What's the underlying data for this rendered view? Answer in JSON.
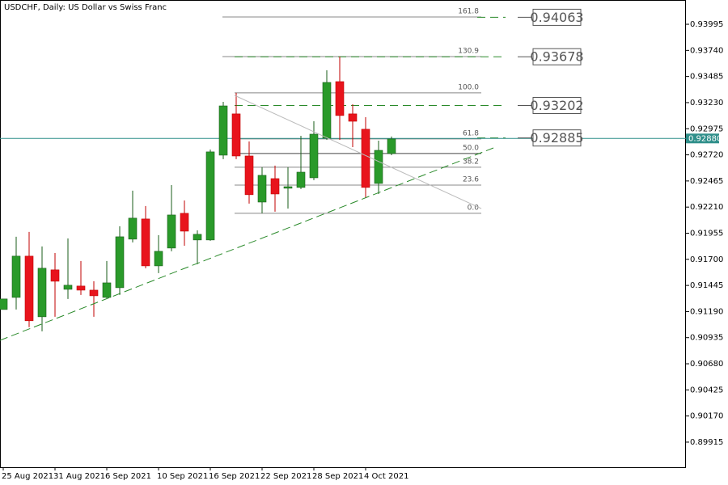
{
  "chart_data": {
    "type": "candlestick",
    "title": "USDCHF, Daily:  US Dollar vs Swiss Franc",
    "categories": [
      "25 Aug 2021",
      null,
      null,
      null,
      "31 Aug 2021",
      null,
      null,
      null,
      "6 Sep 2021",
      null,
      null,
      null,
      "10 Sep 2021",
      null,
      null,
      null,
      "16 Sep 2021",
      null,
      null,
      null,
      "22 Sep 2021",
      null,
      null,
      null,
      "28 Sep 2021",
      null,
      null,
      null,
      "4 Oct 2021",
      null,
      null
    ],
    "open": [
      0.9121,
      0.91328,
      0.91731,
      0.91139,
      0.91597,
      0.91407,
      0.91439,
      0.91399,
      0.91328,
      0.91423,
      0.91897,
      0.92094,
      0.91636,
      0.9181,
      0.92149,
      0.91889,
      0.91889,
      0.92717,
      0.9312,
      0.92709,
      0.92259,
      0.92488,
      0.92394,
      0.92402,
      0.92496,
      0.92883,
      0.93435,
      0.9312,
      0.9297,
      0.92441,
      0.92733
    ],
    "high": [
      0.91313,
      0.9192,
      0.91968,
      0.91826,
      0.91762,
      0.91904,
      0.91684,
      0.91486,
      0.91684,
      0.92023,
      0.9237,
      0.9222,
      0.91936,
      0.92425,
      0.92275,
      0.91983,
      0.92772,
      0.93238,
      0.93325,
      0.92851,
      0.92599,
      0.92615,
      0.92599,
      0.92906,
      0.93048,
      0.93546,
      0.9368,
      0.93214,
      0.93088,
      0.92859,
      0.92899
    ],
    "low": [
      0.9121,
      0.9121,
      0.91037,
      0.90997,
      0.91139,
      0.91313,
      0.91352,
      0.91139,
      0.91321,
      0.91352,
      0.91865,
      0.91613,
      0.91565,
      0.91778,
      0.91833,
      0.91652,
      0.91881,
      0.92678,
      0.92678,
      0.92244,
      0.92149,
      0.92165,
      0.92196,
      0.92386,
      0.92473,
      0.92867,
      0.92867,
      0.92796,
      0.92299,
      0.92338,
      0.92717
    ],
    "close": [
      0.91313,
      0.91731,
      0.911,
      0.91613,
      0.91486,
      0.91447,
      0.91399,
      0.91344,
      0.9147,
      0.9192,
      0.92102,
      0.91636,
      0.91778,
      0.92133,
      0.91975,
      0.91944,
      0.92749,
      0.93198,
      0.92709,
      0.92331,
      0.9252,
      0.92338,
      0.92409,
      0.92551,
      0.92922,
      0.93427,
      0.93104,
      0.93048,
      0.92402,
      0.92764,
      0.92875
    ],
    "up_color": "#2a9a2a",
    "down_color": "#e8141c",
    "ylim": [
      0.8967,
      0.94232
    ],
    "yticks": [
      0.93995,
      {
        "value": 0.9374,
        "label": "0.93740"
      },
      0.93485,
      {
        "value": 0.9323,
        "label": "0.93230"
      },
      0.92975,
      {
        "value": 0.9272,
        "label": "0.92720"
      },
      0.92465,
      {
        "value": 0.9221,
        "label": "0.92210"
      },
      0.91955,
      {
        "value": 0.917,
        "label": "0.91700"
      },
      0.91445,
      {
        "value": 0.9119,
        "label": "0.91190"
      },
      0.90935,
      {
        "value": 0.9068,
        "label": "0.90680"
      },
      0.90425,
      {
        "value": 0.9017,
        "label": "0.90170"
      },
      0.89915
    ],
    "current_price": {
      "value": 0.9288,
      "label": "0.92880"
    },
    "current_price_color": "#2f8f8a",
    "fib_levels": [
      {
        "label": "161.8",
        "value": 0.94066
      },
      {
        "label": "130.9",
        "value": 0.9368
      },
      {
        "label": "100.0",
        "value": 0.93325
      },
      {
        "label": "61.8",
        "value": 0.92875
      },
      {
        "label": "50.0",
        "value": 0.92733
      },
      {
        "label": "38.2",
        "value": 0.92599
      },
      {
        "label": "23.6",
        "value": 0.92425
      },
      {
        "label": "0.0",
        "value": 0.92149
      }
    ],
    "targets": [
      0.94063,
      0.93678,
      0.93202,
      0.92885
    ],
    "target_color": "#2a8a2a"
  }
}
